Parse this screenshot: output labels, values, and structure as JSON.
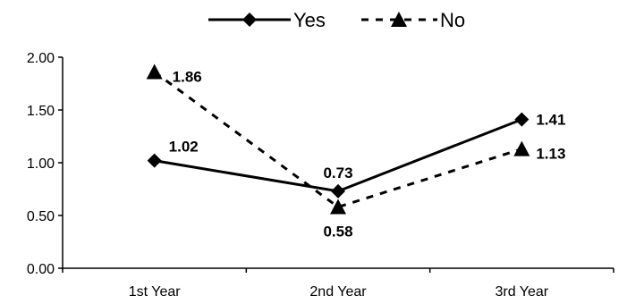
{
  "chart_data": {
    "type": "line",
    "categories": [
      "1st Year",
      "2nd Year",
      "3rd Year"
    ],
    "series": [
      {
        "name": "Yes",
        "values": [
          1.02,
          0.73,
          1.41
        ],
        "line": "solid",
        "marker": "diamond",
        "color": "#000000"
      },
      {
        "name": "No",
        "values": [
          1.86,
          0.58,
          1.13
        ],
        "line": "dashed",
        "marker": "triangle",
        "color": "#000000"
      }
    ],
    "data_labels": [
      [
        "1.02",
        "0.73",
        "1.41"
      ],
      [
        "1.86",
        "0.58",
        "1.13"
      ]
    ],
    "yticks": [
      "0.00",
      "0.50",
      "1.00",
      "1.50",
      "2.00"
    ],
    "ylim": [
      0,
      2
    ],
    "legend_position": "top-center",
    "grid": false
  }
}
